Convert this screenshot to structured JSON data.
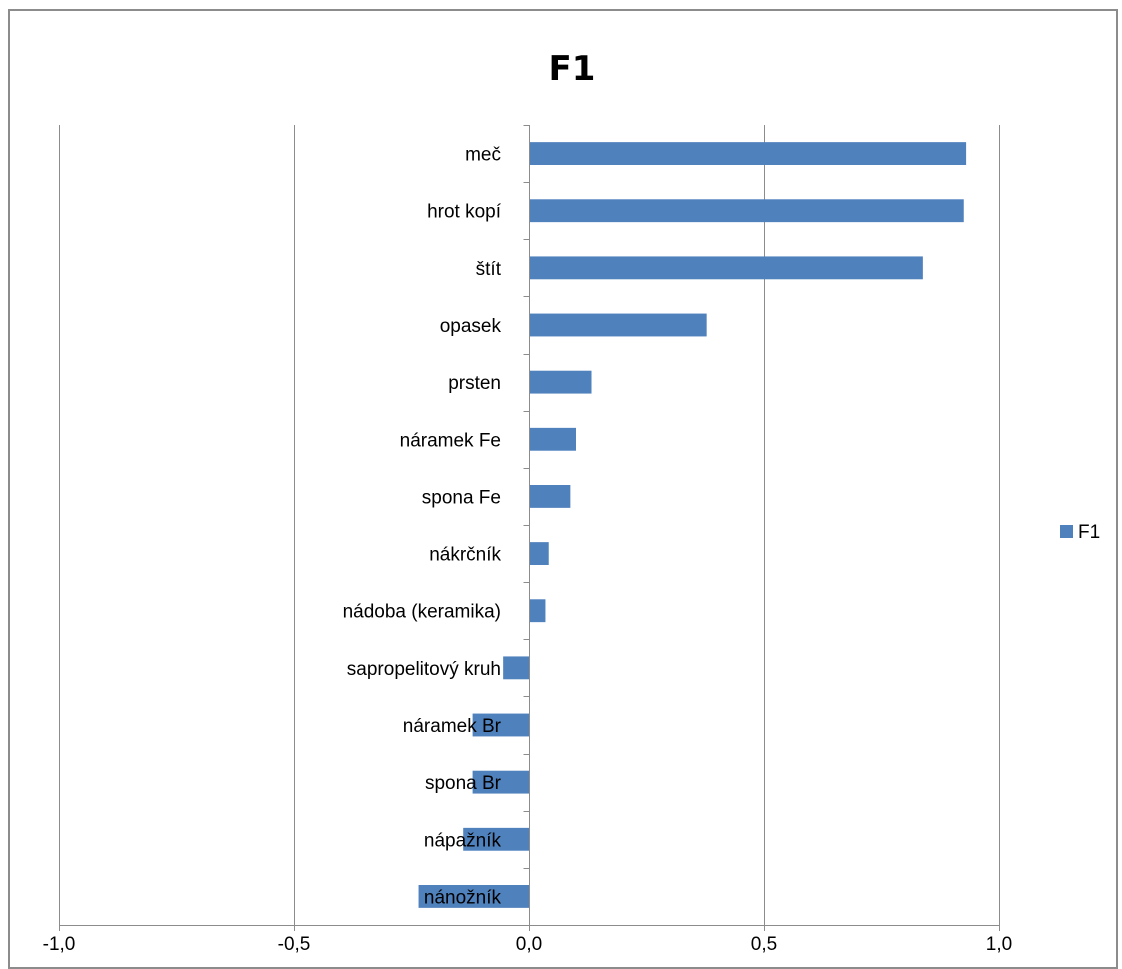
{
  "chart_data": {
    "type": "bar",
    "orientation": "horizontal",
    "title": "F1",
    "categories": [
      "meč",
      "hrot kopí",
      "štít",
      "opasek",
      "prsten",
      "náramek Fe",
      "spona Fe",
      "nákrčník",
      "nádoba (keramika)",
      "sapropelitový kruh",
      "náramek Br",
      "spona Br",
      "nápažník",
      "nánožník"
    ],
    "series": [
      {
        "name": "F1",
        "color": "#4f81bd",
        "values": [
          0.93,
          0.925,
          0.838,
          0.378,
          0.133,
          0.1,
          0.088,
          0.042,
          0.035,
          -0.055,
          -0.12,
          -0.12,
          -0.14,
          -0.235
        ]
      }
    ],
    "xlim": [
      -1.0,
      1.0
    ],
    "xticks": [
      -1.0,
      -0.5,
      0.0,
      0.5,
      1.0
    ],
    "xtick_labels": [
      "-1,0",
      "-0,5",
      "0,0",
      "0,5",
      "1,0"
    ],
    "xlabel": "",
    "ylabel": "",
    "grid": "vertical",
    "legend": "right"
  }
}
